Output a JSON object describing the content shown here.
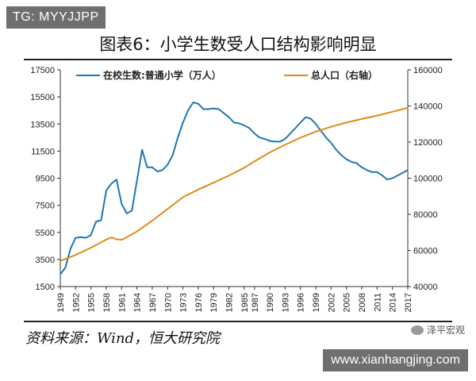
{
  "tag_text": "TG: MYYJJPP",
  "title": "图表6：小学生数受人口结构影响明显",
  "source": "资料来源：Wind，恒大研究院",
  "wechat_label": "泽平宏观",
  "watermark": "www.xianhangjing.com",
  "colors": {
    "students": "#1f77b4",
    "population": "#e08a1e"
  },
  "chart_data": {
    "type": "line",
    "title": "",
    "x_ticks": [
      "1949",
      "1952",
      "1955",
      "1958",
      "1961",
      "1964",
      "1967",
      "1970",
      "1973",
      "1976",
      "1979",
      "1982",
      "1985",
      "1987",
      "1990",
      "1993",
      "1996",
      "1999",
      "2002",
      "2005",
      "2008",
      "2011",
      "2014",
      "2017"
    ],
    "xlim": [
      1949,
      2017
    ],
    "y_left": {
      "ylim": [
        1500,
        17500
      ],
      "ticks": [
        1500,
        3500,
        5500,
        7500,
        9500,
        11500,
        13500,
        15500,
        17500
      ]
    },
    "y_right": {
      "ylim": [
        40000,
        160000
      ],
      "ticks": [
        40000,
        60000,
        80000,
        100000,
        120000,
        140000,
        160000
      ]
    },
    "legend": "top",
    "series": [
      {
        "name": "在校生数:普通小学（万人）",
        "axis": "left",
        "points": [
          [
            1949,
            2400
          ],
          [
            1950,
            2900
          ],
          [
            1951,
            4300
          ],
          [
            1952,
            5100
          ],
          [
            1953,
            5150
          ],
          [
            1954,
            5100
          ],
          [
            1955,
            5300
          ],
          [
            1956,
            6300
          ],
          [
            1957,
            6400
          ],
          [
            1958,
            8600
          ],
          [
            1959,
            9100
          ],
          [
            1960,
            9400
          ],
          [
            1961,
            7600
          ],
          [
            1962,
            6900
          ],
          [
            1963,
            7100
          ],
          [
            1964,
            9300
          ],
          [
            1965,
            11600
          ],
          [
            1966,
            10300
          ],
          [
            1967,
            10300
          ],
          [
            1968,
            10000
          ],
          [
            1969,
            10100
          ],
          [
            1970,
            10500
          ],
          [
            1971,
            11200
          ],
          [
            1972,
            12500
          ],
          [
            1973,
            13600
          ],
          [
            1974,
            14500
          ],
          [
            1975,
            15100
          ],
          [
            1976,
            15000
          ],
          [
            1977,
            14600
          ],
          [
            1978,
            14600
          ],
          [
            1979,
            14650
          ],
          [
            1980,
            14600
          ],
          [
            1981,
            14300
          ],
          [
            1982,
            14000
          ],
          [
            1983,
            13600
          ],
          [
            1984,
            13550
          ],
          [
            1985,
            13400
          ],
          [
            1986,
            13200
          ],
          [
            1987,
            12800
          ],
          [
            1988,
            12500
          ],
          [
            1989,
            12400
          ],
          [
            1990,
            12250
          ],
          [
            1991,
            12200
          ],
          [
            1992,
            12200
          ],
          [
            1993,
            12400
          ],
          [
            1994,
            12800
          ],
          [
            1995,
            13200
          ],
          [
            1996,
            13600
          ],
          [
            1997,
            14000
          ],
          [
            1998,
            13900
          ],
          [
            1999,
            13500
          ],
          [
            2000,
            13000
          ],
          [
            2001,
            12500
          ],
          [
            2002,
            12100
          ],
          [
            2003,
            11600
          ],
          [
            2004,
            11200
          ],
          [
            2005,
            10900
          ],
          [
            2006,
            10700
          ],
          [
            2007,
            10600
          ],
          [
            2008,
            10300
          ],
          [
            2009,
            10100
          ],
          [
            2010,
            9950
          ],
          [
            2011,
            9950
          ],
          [
            2012,
            9700
          ],
          [
            2013,
            9400
          ],
          [
            2014,
            9500
          ],
          [
            2015,
            9700
          ],
          [
            2016,
            9900
          ],
          [
            2017,
            10100
          ]
        ]
      },
      {
        "name": "总人口（右轴）",
        "axis": "right",
        "points": [
          [
            1949,
            54200
          ],
          [
            1952,
            57500
          ],
          [
            1955,
            61500
          ],
          [
            1958,
            66000
          ],
          [
            1959,
            67200
          ],
          [
            1960,
            66200
          ],
          [
            1961,
            65900
          ],
          [
            1962,
            67300
          ],
          [
            1964,
            70500
          ],
          [
            1967,
            76500
          ],
          [
            1970,
            83000
          ],
          [
            1973,
            89500
          ],
          [
            1976,
            93700
          ],
          [
            1979,
            97500
          ],
          [
            1982,
            101500
          ],
          [
            1985,
            105800
          ],
          [
            1987,
            109300
          ],
          [
            1990,
            114300
          ],
          [
            1993,
            118500
          ],
          [
            1996,
            122400
          ],
          [
            1999,
            125800
          ],
          [
            2002,
            128500
          ],
          [
            2005,
            130800
          ],
          [
            2008,
            132800
          ],
          [
            2011,
            134700
          ],
          [
            2014,
            136800
          ],
          [
            2017,
            139000
          ]
        ]
      }
    ]
  }
}
